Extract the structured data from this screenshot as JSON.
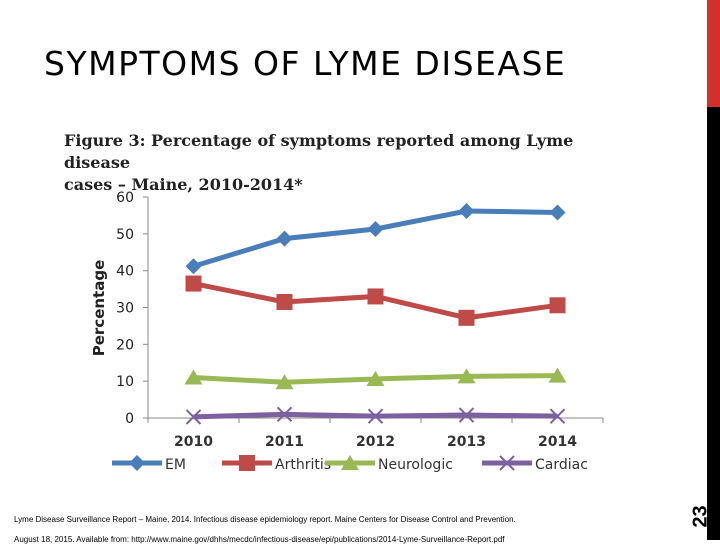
{
  "slide": {
    "title": "SYMPTOMS OF LYME DISEASE",
    "number": "23",
    "footer_line1": "Lyme Disease Surveillance Report – Maine, 2014.  Infectious disease epidemiology report. Maine Centers for Disease Control and Prevention.",
    "footer_line2": "August 18, 2015.  Available from: http://www.maine.gov/dhhs/mecdc/infectious-disease/epi/publications/2014-Lyme-Surveillance-Report.pdf",
    "accent_colors": {
      "red": "#d2302c",
      "black": "#000000"
    }
  },
  "chart_data": {
    "type": "line",
    "title_line1": "Figure 3:  Percentage of symptoms reported among Lyme disease",
    "title_line2": "cases – Maine, 2010-2014*",
    "xlabel": "",
    "ylabel": "Percentage",
    "categories": [
      "2010",
      "2011",
      "2012",
      "2013",
      "2014"
    ],
    "ylim": [
      0,
      60
    ],
    "yticks": [
      "0",
      "10",
      "20",
      "30",
      "40",
      "50",
      "60"
    ],
    "grid": false,
    "legend_placement": "bottom",
    "series": [
      {
        "name": "EM",
        "color": "#4a7ebb",
        "marker": "diamond",
        "values": [
          41.2,
          48.7,
          51.3,
          56.2,
          55.8
        ]
      },
      {
        "name": "Arthritis",
        "color": "#be4b48",
        "marker": "square",
        "values": [
          36.5,
          31.5,
          33.0,
          27.2,
          30.6
        ]
      },
      {
        "name": "Neurologic",
        "color": "#98b954",
        "marker": "triangle",
        "values": [
          11.0,
          9.7,
          10.6,
          11.3,
          11.5
        ]
      },
      {
        "name": "Cardiac",
        "color": "#7d60a0",
        "marker": "x",
        "values": [
          0.3,
          1.0,
          0.5,
          0.8,
          0.5
        ]
      }
    ]
  }
}
